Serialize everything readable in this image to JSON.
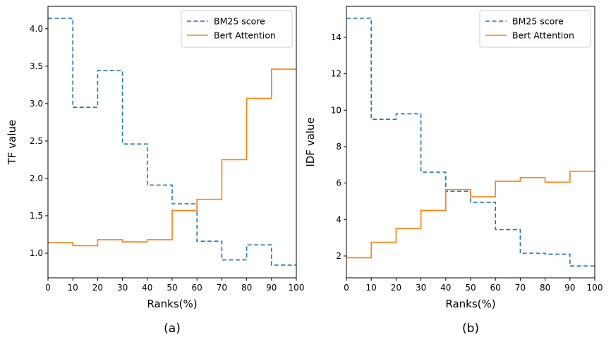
{
  "chart_data": [
    {
      "type": "line",
      "step": true,
      "panel_label": "(a)",
      "xlabel": "Ranks(%)",
      "ylabel": "TF value",
      "xlim": [
        0,
        100
      ],
      "ylim": [
        0.67,
        4.3
      ],
      "xticks": [
        0,
        10,
        20,
        30,
        40,
        50,
        60,
        70,
        80,
        90,
        100
      ],
      "yticks": [
        1.0,
        1.5,
        2.0,
        2.5,
        3.0,
        3.5,
        4.0
      ],
      "ytick_labels": [
        "1.0",
        "1.5",
        "2.0",
        "2.5",
        "3.0",
        "3.5",
        "4.0"
      ],
      "legend_position": "upper-right",
      "x_bins": [
        0,
        10,
        20,
        30,
        40,
        50,
        60,
        70,
        80,
        90,
        100
      ],
      "series": [
        {
          "name": "BM25 score",
          "color": "#1f77b4",
          "style": "dashed",
          "values": [
            4.14,
            2.95,
            3.44,
            2.46,
            1.91,
            1.66,
            1.16,
            0.91,
            1.11,
            0.84
          ]
        },
        {
          "name": "Bert Attention",
          "color": "#ff7f0e",
          "style": "solid",
          "values": [
            1.14,
            1.1,
            1.18,
            1.15,
            1.18,
            1.57,
            1.72,
            2.25,
            3.07,
            3.46
          ]
        }
      ]
    },
    {
      "type": "line",
      "step": true,
      "panel_label": "(b)",
      "xlabel": "Ranks(%)",
      "ylabel": "IDF value",
      "xlim": [
        0,
        100
      ],
      "ylim": [
        0.8,
        15.7
      ],
      "xticks": [
        0,
        10,
        20,
        30,
        40,
        50,
        60,
        70,
        80,
        90,
        100
      ],
      "yticks": [
        2,
        4,
        6,
        8,
        10,
        12,
        14
      ],
      "ytick_labels": [
        "2",
        "4",
        "6",
        "8",
        "10",
        "12",
        "14"
      ],
      "legend_position": "upper-right",
      "x_bins": [
        0,
        10,
        20,
        30,
        40,
        50,
        60,
        70,
        80,
        90,
        100
      ],
      "series": [
        {
          "name": "BM25 score",
          "color": "#1f77b4",
          "style": "dashed",
          "values": [
            15.05,
            9.5,
            9.8,
            6.6,
            5.55,
            4.95,
            3.45,
            2.15,
            2.1,
            1.45
          ]
        },
        {
          "name": "Bert Attention",
          "color": "#ff7f0e",
          "style": "solid",
          "values": [
            1.9,
            2.75,
            3.5,
            4.5,
            5.65,
            5.25,
            6.1,
            6.3,
            6.05,
            6.65
          ]
        }
      ]
    }
  ]
}
